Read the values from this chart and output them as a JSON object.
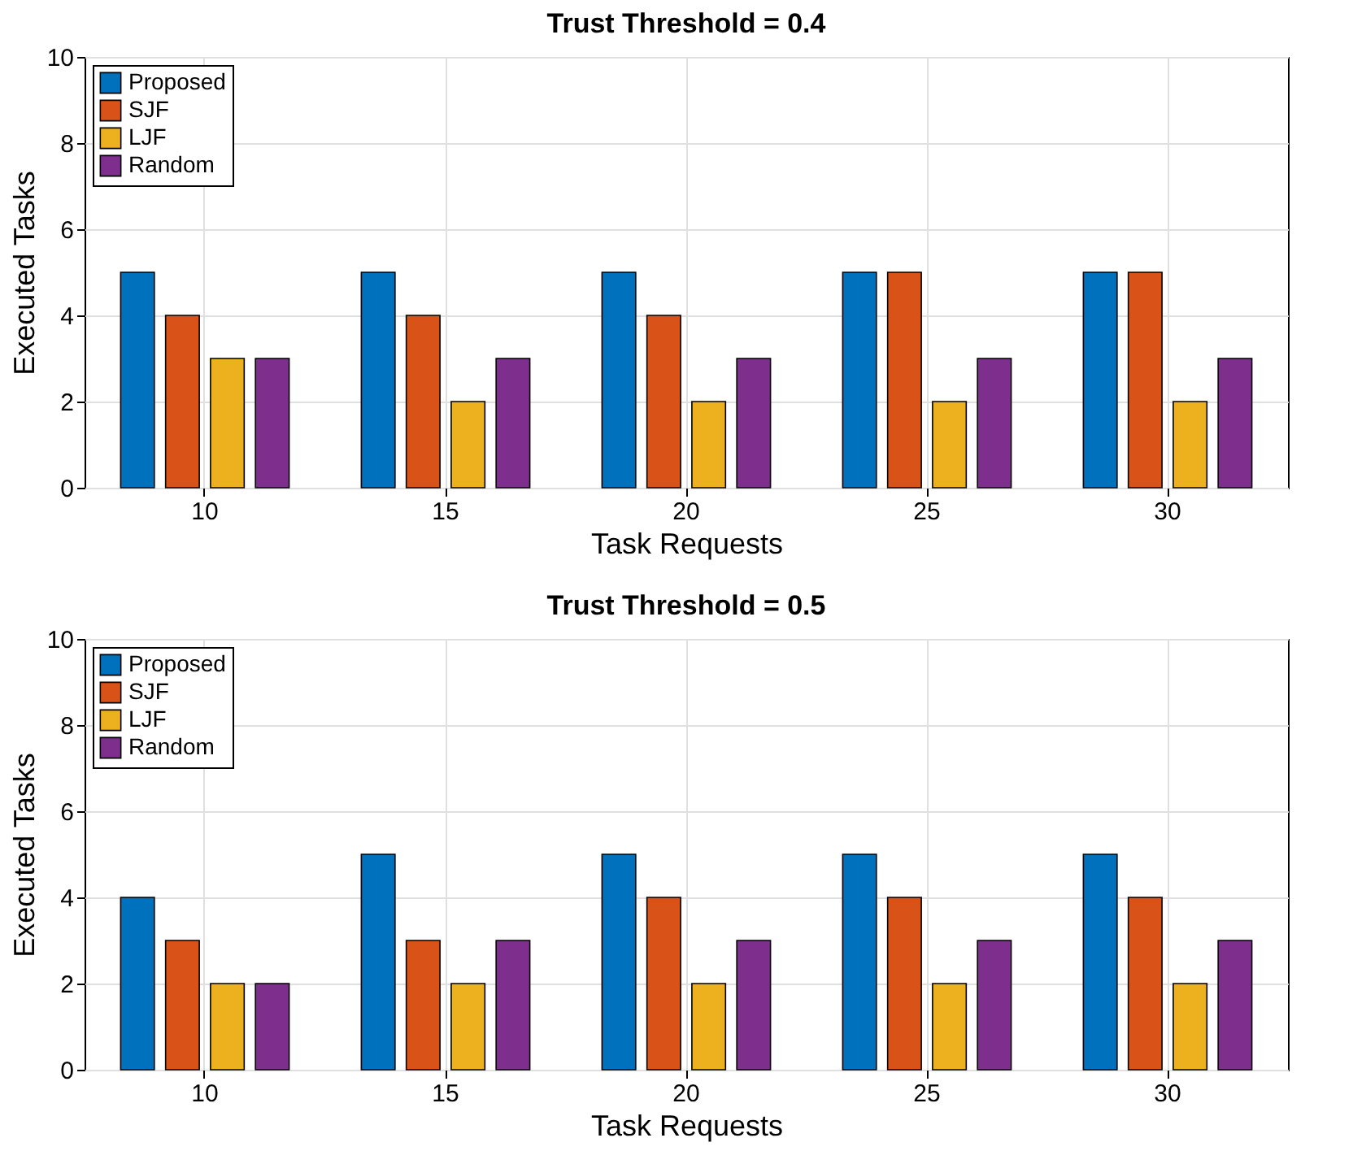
{
  "chart_data": [
    {
      "type": "bar",
      "title": "Trust Threshold = 0.4",
      "xlabel": "Task Requests",
      "ylabel": "Executed Tasks",
      "categories": [
        "10",
        "15",
        "20",
        "25",
        "30"
      ],
      "series": [
        {
          "name": "Proposed",
          "color": "#0072bd",
          "values": [
            5,
            5,
            5,
            5,
            5
          ]
        },
        {
          "name": "SJF",
          "color": "#d95319",
          "values": [
            4,
            4,
            4,
            5,
            5
          ]
        },
        {
          "name": "LJF",
          "color": "#edb120",
          "values": [
            3,
            2,
            2,
            2,
            2
          ]
        },
        {
          "name": "Random",
          "color": "#7e2f8e",
          "values": [
            3,
            3,
            3,
            3,
            3
          ]
        }
      ],
      "ylim": [
        0,
        10
      ],
      "yticks": [
        0,
        2,
        4,
        6,
        8,
        10
      ],
      "grid": true,
      "legend": "top left"
    },
    {
      "type": "bar",
      "title": "Trust Threshold = 0.5",
      "xlabel": "Task Requests",
      "ylabel": "Executed Tasks",
      "categories": [
        "10",
        "15",
        "20",
        "25",
        "30"
      ],
      "series": [
        {
          "name": "Proposed",
          "color": "#0072bd",
          "values": [
            4,
            5,
            5,
            5,
            5
          ]
        },
        {
          "name": "SJF",
          "color": "#d95319",
          "values": [
            3,
            3,
            4,
            4,
            4
          ]
        },
        {
          "name": "LJF",
          "color": "#edb120",
          "values": [
            2,
            2,
            2,
            2,
            2
          ]
        },
        {
          "name": "Random",
          "color": "#7e2f8e",
          "values": [
            2,
            3,
            3,
            3,
            3
          ]
        }
      ],
      "ylim": [
        0,
        10
      ],
      "yticks": [
        0,
        2,
        4,
        6,
        8,
        10
      ],
      "grid": true,
      "legend": "top left"
    }
  ]
}
